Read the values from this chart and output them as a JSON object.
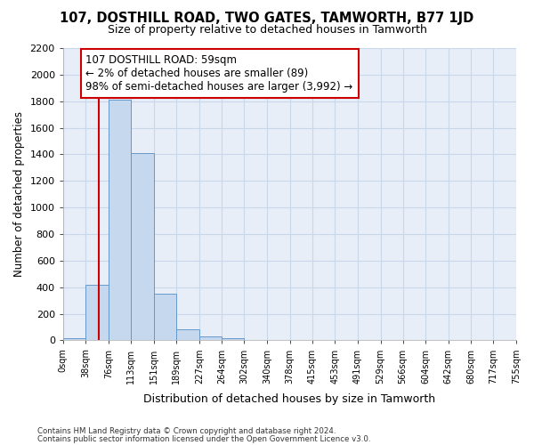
{
  "title": "107, DOSTHILL ROAD, TWO GATES, TAMWORTH, B77 1JD",
  "subtitle": "Size of property relative to detached houses in Tamworth",
  "xlabel": "Distribution of detached houses by size in Tamworth",
  "ylabel": "Number of detached properties",
  "bar_edges": [
    0,
    38,
    76,
    113,
    151,
    189,
    227,
    264,
    302,
    340,
    378,
    415,
    453,
    491,
    529,
    566,
    604,
    642,
    680,
    717,
    755
  ],
  "bar_heights": [
    15,
    420,
    1810,
    1410,
    350,
    80,
    30,
    18,
    0,
    0,
    0,
    0,
    0,
    0,
    0,
    0,
    0,
    0,
    0,
    0
  ],
  "bar_color": "#c5d8ee",
  "bar_edgecolor": "#6699cc",
  "grid_color": "#c8d8ea",
  "background_color": "#ffffff",
  "plot_bg_color": "#e8eef8",
  "property_size": 59,
  "annotation_text": "107 DOSTHILL ROAD: 59sqm\n← 2% of detached houses are smaller (89)\n98% of semi-detached houses are larger (3,992) →",
  "annotation_box_color": "#ffffff",
  "annotation_box_edgecolor": "#cc0000",
  "vline_color": "#cc0000",
  "ylim": [
    0,
    2200
  ],
  "yticks": [
    0,
    200,
    400,
    600,
    800,
    1000,
    1200,
    1400,
    1600,
    1800,
    2000,
    2200
  ],
  "footer_line1": "Contains HM Land Registry data © Crown copyright and database right 2024.",
  "footer_line2": "Contains public sector information licensed under the Open Government Licence v3.0."
}
